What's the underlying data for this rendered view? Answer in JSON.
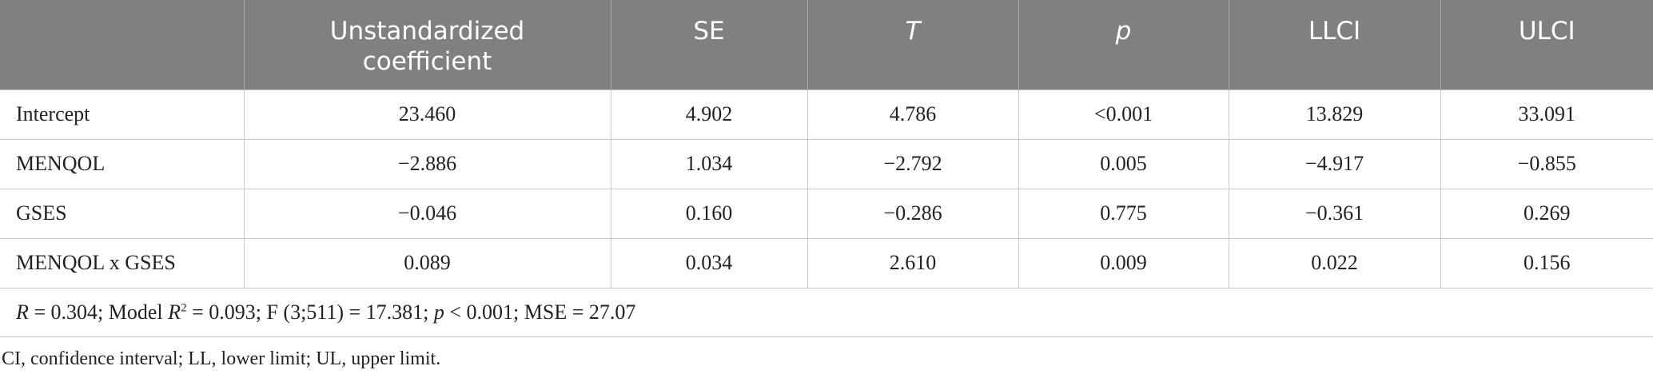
{
  "table": {
    "header": [
      "",
      "Unstandardized coefficient",
      "SE",
      "T",
      "p",
      "LLCI",
      "ULCI"
    ],
    "rows": [
      [
        "Intercept",
        "23.460",
        "4.902",
        "4.786",
        "<0.001",
        "13.829",
        "33.091"
      ],
      [
        "MENQOL",
        "−2.886",
        "1.034",
        "−2.792",
        "0.005",
        "−4.917",
        "−0.855"
      ],
      [
        "GSES",
        "−0.046",
        "0.160",
        "−0.286",
        "0.775",
        "−0.361",
        "0.269"
      ],
      [
        "MENQOL x GSES",
        "0.089",
        "0.034",
        "2.610",
        "0.009",
        "0.022",
        "0.156"
      ]
    ],
    "note": [
      "R",
      " = 0.304; Model ",
      "R",
      "2",
      " = 0.093; F (3;511) = 17.381; ",
      "p",
      " < 0.001; MSE = 27.07"
    ]
  },
  "caption": "CI, confidence interval; LL, lower limit; UL, upper limit."
}
